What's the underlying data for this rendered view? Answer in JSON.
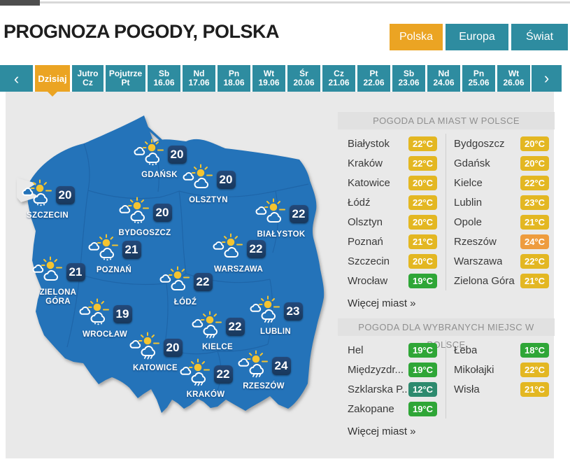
{
  "page": {
    "title": "PROGNOZA POGODY, POLSKA"
  },
  "region_tabs": [
    {
      "label": "Polska",
      "active": true
    },
    {
      "label": "Europa",
      "active": false
    },
    {
      "label": "Świat",
      "active": false
    }
  ],
  "date_nav": {
    "prev_label": "‹",
    "next_label": "›",
    "tabs": [
      {
        "line1": "Dzisiaj",
        "line2": "",
        "active": true
      },
      {
        "line1": "Jutro",
        "line2": "Cz",
        "active": false
      },
      {
        "line1": "Pojutrze",
        "line2": "Pt",
        "active": false
      },
      {
        "line1": "Sb",
        "line2": "16.06",
        "active": false
      },
      {
        "line1": "Nd",
        "line2": "17.06",
        "active": false
      },
      {
        "line1": "Pn",
        "line2": "18.06",
        "active": false
      },
      {
        "line1": "Wt",
        "line2": "19.06",
        "active": false
      },
      {
        "line1": "Śr",
        "line2": "20.06",
        "active": false
      },
      {
        "line1": "Cz",
        "line2": "21.06",
        "active": false
      },
      {
        "line1": "Pt",
        "line2": "22.06",
        "active": false
      },
      {
        "line1": "Sb",
        "line2": "23.06",
        "active": false
      },
      {
        "line1": "Nd",
        "line2": "24.06",
        "active": false
      },
      {
        "line1": "Pn",
        "line2": "25.06",
        "active": false
      },
      {
        "line1": "Wt",
        "line2": "26.06",
        "active": false
      }
    ]
  },
  "map_cities": [
    {
      "name": "GDAŃSK",
      "temp": "20",
      "icon": "rain"
    },
    {
      "name": "OLSZTYN",
      "temp": "20",
      "icon": "partly"
    },
    {
      "name": "SZCZECIN",
      "temp": "20",
      "icon": "rain"
    },
    {
      "name": "BYDGOSZCZ",
      "temp": "20",
      "icon": "rain"
    },
    {
      "name": "BIAŁYSTOK",
      "temp": "22",
      "icon": "partly"
    },
    {
      "name": "POZNAŃ",
      "temp": "21",
      "icon": "rain"
    },
    {
      "name": "WARSZAWA",
      "temp": "22",
      "icon": "partly"
    },
    {
      "name": "ZIELONA GÓRA",
      "temp": "21",
      "icon": "partly"
    },
    {
      "name": "ŁÓDŹ",
      "temp": "22",
      "icon": "partly"
    },
    {
      "name": "WROCŁAW",
      "temp": "19",
      "icon": "rain"
    },
    {
      "name": "LUBLIN",
      "temp": "23",
      "icon": "storm"
    },
    {
      "name": "KIELCE",
      "temp": "22",
      "icon": "storm"
    },
    {
      "name": "KATOWICE",
      "temp": "20",
      "icon": "storm"
    },
    {
      "name": "KRAKÓW",
      "temp": "22",
      "icon": "storm"
    },
    {
      "name": "RZESZÓW",
      "temp": "24",
      "icon": "storm"
    }
  ],
  "panels": [
    {
      "title": "POGODA DLA MIAST W POLSCE",
      "more_link": "Więcej miast »",
      "left": [
        {
          "name": "Białystok",
          "temp": "22°C",
          "level": "yellow"
        },
        {
          "name": "Kraków",
          "temp": "22°C",
          "level": "yellow"
        },
        {
          "name": "Katowice",
          "temp": "20°C",
          "level": "yellow"
        },
        {
          "name": "Łódź",
          "temp": "22°C",
          "level": "yellow"
        },
        {
          "name": "Olsztyn",
          "temp": "20°C",
          "level": "yellow"
        },
        {
          "name": "Poznań",
          "temp": "21°C",
          "level": "yellow"
        },
        {
          "name": "Szczecin",
          "temp": "20°C",
          "level": "yellow"
        },
        {
          "name": "Wrocław",
          "temp": "19°C",
          "level": "green"
        }
      ],
      "right": [
        {
          "name": "Bydgoszcz",
          "temp": "20°C",
          "level": "yellow"
        },
        {
          "name": "Gdańsk",
          "temp": "20°C",
          "level": "yellow"
        },
        {
          "name": "Kielce",
          "temp": "22°C",
          "level": "yellow"
        },
        {
          "name": "Lublin",
          "temp": "23°C",
          "level": "yellow"
        },
        {
          "name": "Opole",
          "temp": "21°C",
          "level": "yellow"
        },
        {
          "name": "Rzeszów",
          "temp": "24°C",
          "level": "orange"
        },
        {
          "name": "Warszawa",
          "temp": "22°C",
          "level": "yellow"
        },
        {
          "name": "Zielona Góra",
          "temp": "21°C",
          "level": "yellow"
        }
      ]
    },
    {
      "title": "POGODA DLA WYBRANYCH MIEJSC W POLSCE",
      "more_link": "Więcej miast »",
      "left": [
        {
          "name": "Hel",
          "temp": "19°C",
          "level": "green"
        },
        {
          "name": "Międzyzdr...",
          "temp": "19°C",
          "level": "green"
        },
        {
          "name": "Szklarska P...",
          "temp": "12°C",
          "level": "teal-green"
        },
        {
          "name": "Zakopane",
          "temp": "19°C",
          "level": "green"
        }
      ],
      "right": [
        {
          "name": "Łeba",
          "temp": "18°C",
          "level": "green"
        },
        {
          "name": "Mikołajki",
          "temp": "22°C",
          "level": "yellow"
        },
        {
          "name": "Wisła",
          "temp": "21°C",
          "level": "yellow"
        }
      ]
    }
  ],
  "colors": {
    "teal": "#2E8CA0",
    "orange": "#EBA423",
    "map_blue": "#2473B9",
    "map_border": "#1E63A6",
    "badge_navy": "#1C3E63",
    "badge_yellow": "#E3B722",
    "badge_green": "#2FA637",
    "badge_teal_green": "#2D8A6E",
    "badge_orange": "#EE9C3E",
    "sun_yellow": "#F4C430"
  }
}
